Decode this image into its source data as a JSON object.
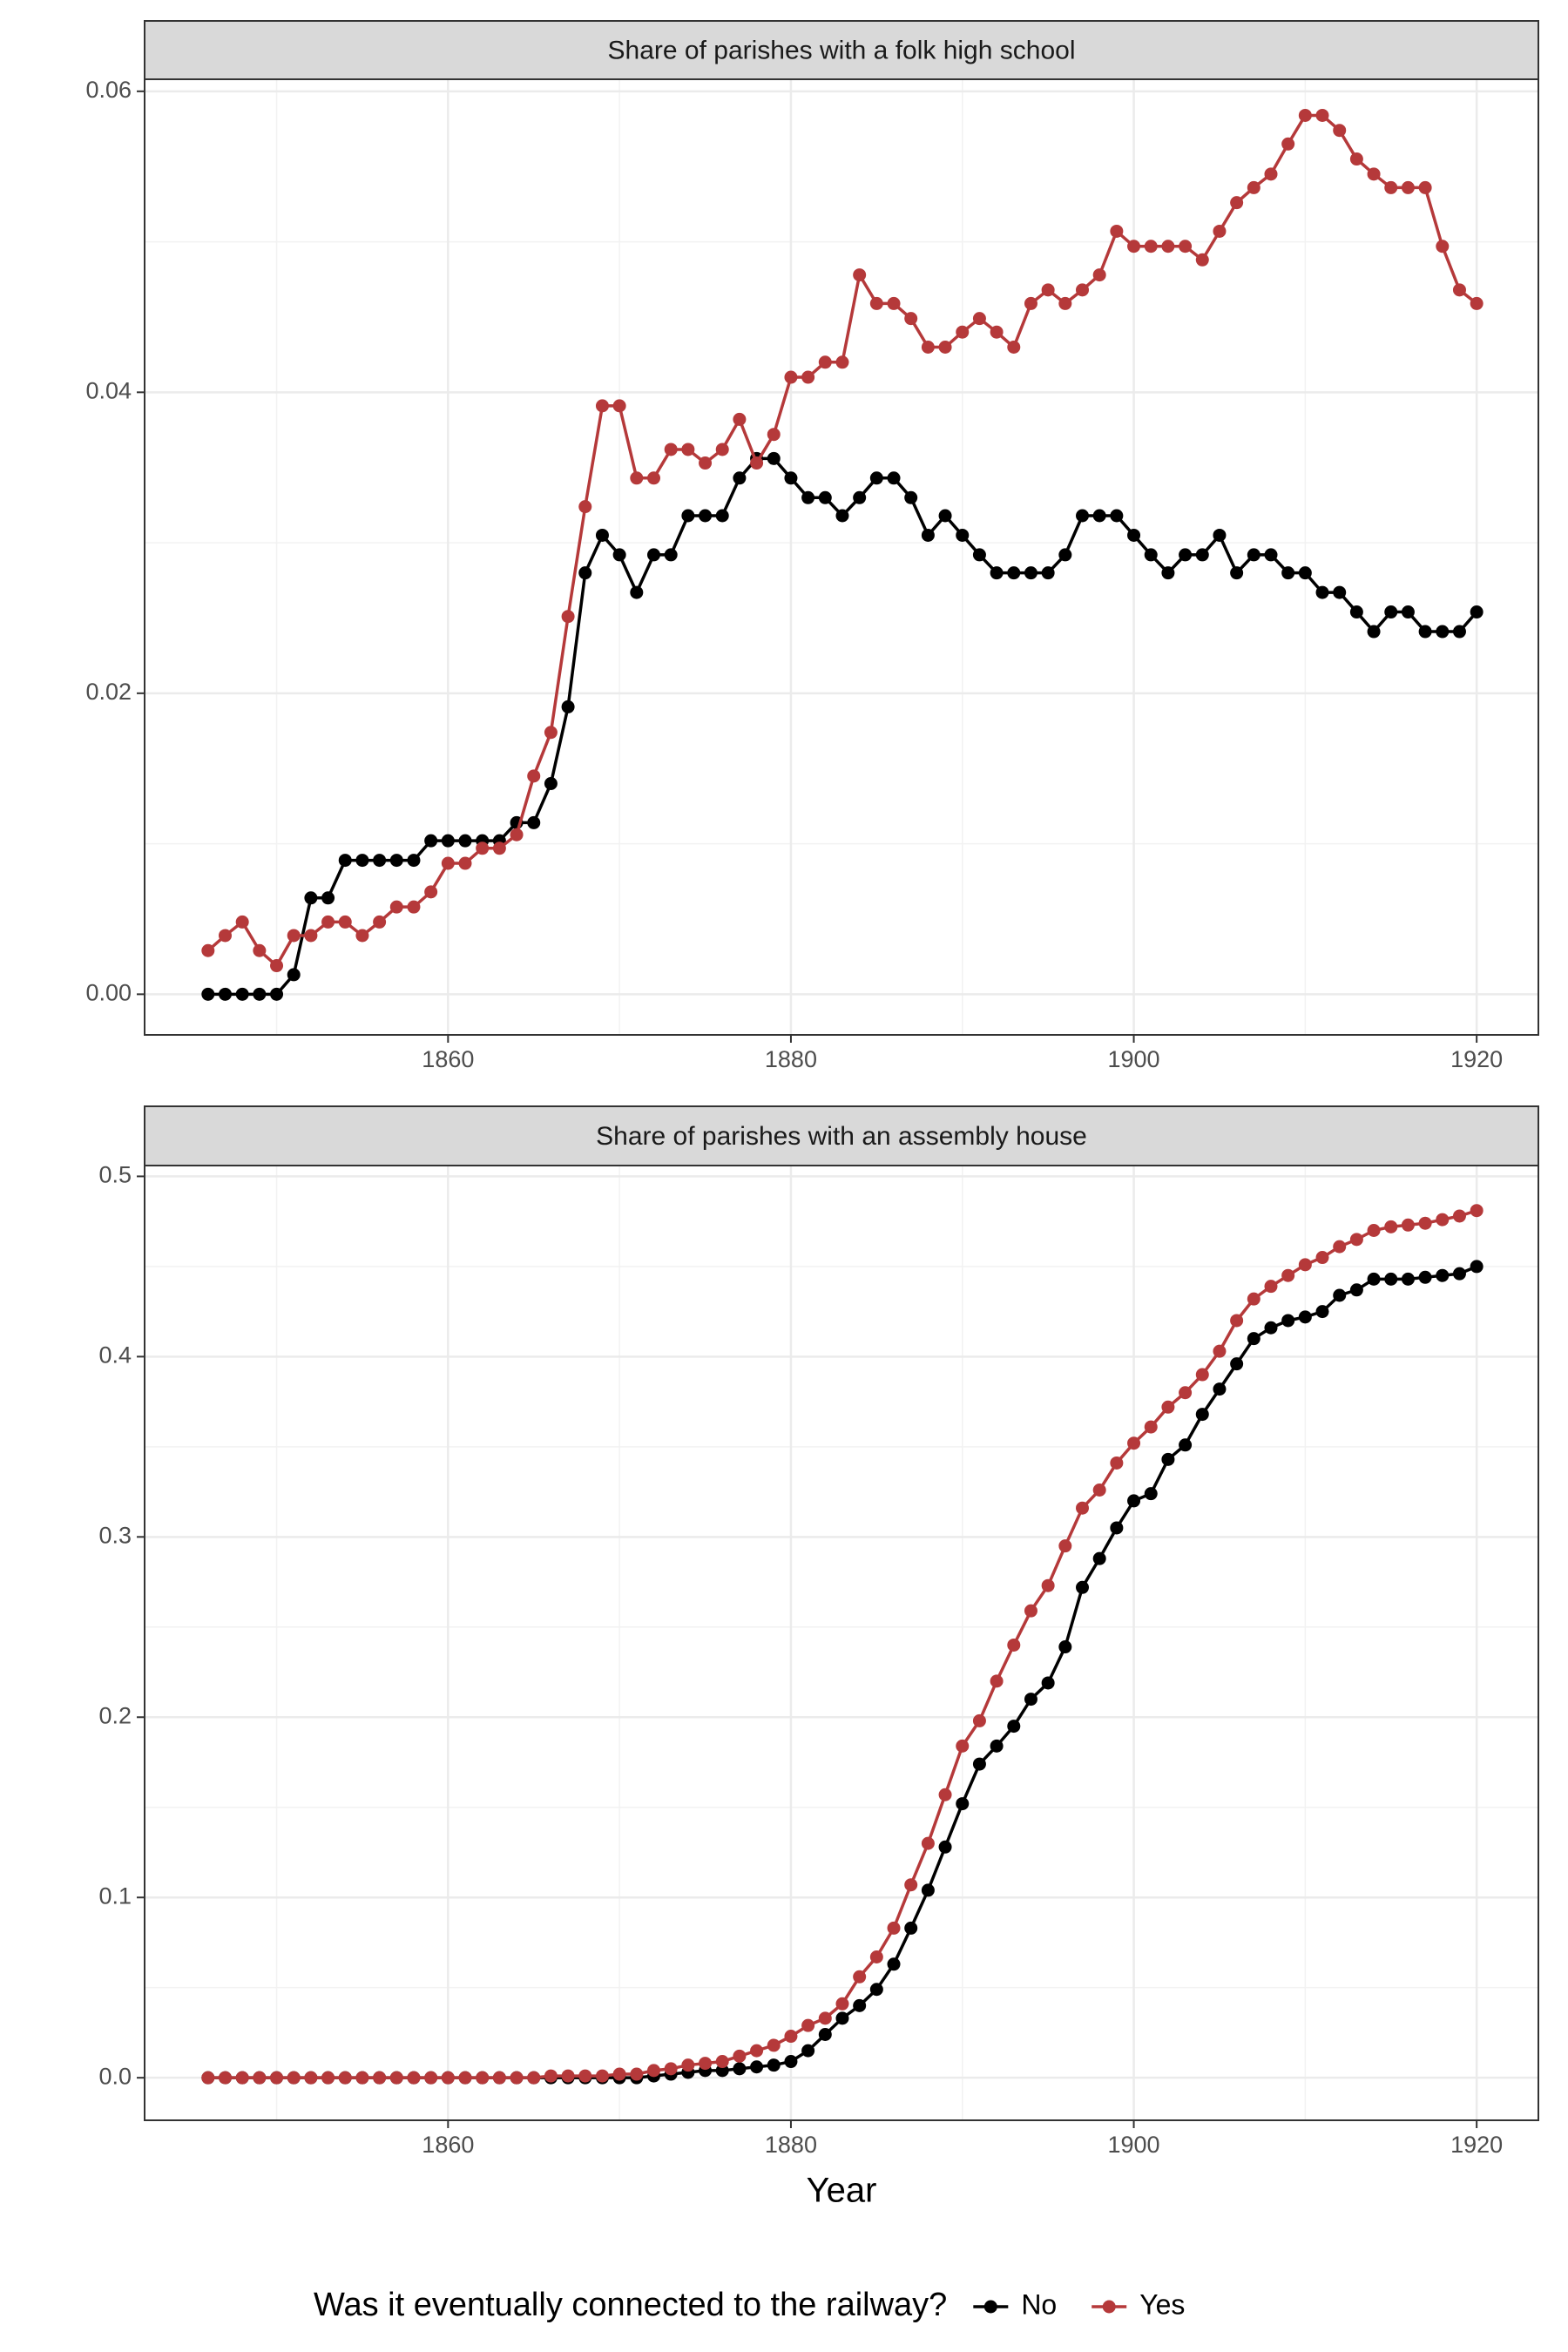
{
  "chart_data": [
    {
      "type": "line",
      "title": "Share of parishes with a folk high school",
      "x": [
        1846,
        1847,
        1848,
        1849,
        1850,
        1851,
        1852,
        1853,
        1854,
        1855,
        1856,
        1857,
        1858,
        1859,
        1860,
        1861,
        1862,
        1863,
        1864,
        1865,
        1866,
        1867,
        1868,
        1869,
        1870,
        1871,
        1872,
        1873,
        1874,
        1875,
        1876,
        1877,
        1878,
        1879,
        1880,
        1881,
        1882,
        1883,
        1884,
        1885,
        1886,
        1887,
        1888,
        1889,
        1890,
        1891,
        1892,
        1893,
        1894,
        1895,
        1896,
        1897,
        1898,
        1899,
        1900,
        1901,
        1902,
        1903,
        1904,
        1905,
        1906,
        1907,
        1908,
        1909,
        1910,
        1911,
        1912,
        1913,
        1914,
        1915,
        1916,
        1917,
        1918,
        1919,
        1920
      ],
      "series": [
        {
          "name": "No",
          "color": "#000000",
          "values": [
            0,
            0,
            0,
            0,
            0,
            0.0013,
            0.0064,
            0.0064,
            0.0089,
            0.0089,
            0.0089,
            0.0089,
            0.0089,
            0.0102,
            0.0102,
            0.0102,
            0.0102,
            0.0102,
            0.0114,
            0.0114,
            0.014,
            0.0191,
            0.028,
            0.0305,
            0.0292,
            0.0267,
            0.0292,
            0.0292,
            0.0318,
            0.0318,
            0.0318,
            0.0343,
            0.0356,
            0.0356,
            0.0343,
            0.033,
            0.033,
            0.0318,
            0.033,
            0.0343,
            0.0343,
            0.033,
            0.0305,
            0.0318,
            0.0305,
            0.0292,
            0.028,
            0.028,
            0.028,
            0.028,
            0.0292,
            0.0318,
            0.0318,
            0.0318,
            0.0305,
            0.0292,
            0.028,
            0.0292,
            0.0292,
            0.0305,
            0.028,
            0.0292,
            0.0292,
            0.028,
            0.028,
            0.0267,
            0.0267,
            0.0254,
            0.0241,
            0.0254,
            0.0254,
            0.0241,
            0.0241,
            0.0241,
            0.0254
          ]
        },
        {
          "name": "Yes",
          "color": "#b5393a",
          "values": [
            0.0029,
            0.0039,
            0.0048,
            0.0029,
            0.0019,
            0.0039,
            0.0039,
            0.0048,
            0.0048,
            0.0039,
            0.0048,
            0.0058,
            0.0058,
            0.0068,
            0.0087,
            0.0087,
            0.0097,
            0.0097,
            0.0106,
            0.0145,
            0.0174,
            0.0251,
            0.0324,
            0.0391,
            0.0391,
            0.0343,
            0.0343,
            0.0362,
            0.0362,
            0.0353,
            0.0362,
            0.0382,
            0.0353,
            0.0372,
            0.041,
            0.041,
            0.042,
            0.042,
            0.0478,
            0.0459,
            0.0459,
            0.0449,
            0.043,
            0.043,
            0.044,
            0.0449,
            0.044,
            0.043,
            0.0459,
            0.0468,
            0.0459,
            0.0468,
            0.0478,
            0.0507,
            0.0497,
            0.0497,
            0.0497,
            0.0497,
            0.0488,
            0.0507,
            0.0526,
            0.0536,
            0.0545,
            0.0565,
            0.0584,
            0.0584,
            0.0574,
            0.0555,
            0.0545,
            0.0536,
            0.0536,
            0.0536,
            0.0497,
            0.0468,
            0.0459
          ]
        }
      ],
      "xlim": [
        1842.3,
        1923.6
      ],
      "xticks": [
        1860,
        1880,
        1900,
        1920
      ],
      "ylim": [
        -0.0027,
        0.0608
      ],
      "yticks": [
        {
          "value": 0,
          "label": "0.00"
        },
        0.02,
        0.04,
        0.06
      ],
      "grid": true
    },
    {
      "type": "line",
      "title": "Share of parishes with an assembly house",
      "xlabel": "Year",
      "legend_title": "Was it eventually connected to the railway?",
      "legend": "bottom",
      "x": [
        1846,
        1847,
        1848,
        1849,
        1850,
        1851,
        1852,
        1853,
        1854,
        1855,
        1856,
        1857,
        1858,
        1859,
        1860,
        1861,
        1862,
        1863,
        1864,
        1865,
        1866,
        1867,
        1868,
        1869,
        1870,
        1871,
        1872,
        1873,
        1874,
        1875,
        1876,
        1877,
        1878,
        1879,
        1880,
        1881,
        1882,
        1883,
        1884,
        1885,
        1886,
        1887,
        1888,
        1889,
        1890,
        1891,
        1892,
        1893,
        1894,
        1895,
        1896,
        1897,
        1898,
        1899,
        1900,
        1901,
        1902,
        1903,
        1904,
        1905,
        1906,
        1907,
        1908,
        1909,
        1910,
        1911,
        1912,
        1913,
        1914,
        1915,
        1916,
        1917,
        1918,
        1919,
        1920
      ],
      "series": [
        {
          "name": "No",
          "color": "#000000",
          "values": [
            0,
            0,
            0,
            0,
            0,
            0,
            0,
            0,
            0,
            0,
            0,
            0,
            0,
            0,
            0,
            0,
            0,
            0,
            0,
            0,
            0,
            0,
            0,
            0,
            0,
            0,
            0.001,
            0.002,
            0.003,
            0.004,
            0.004,
            0.005,
            0.006,
            0.007,
            0.009,
            0.015,
            0.024,
            0.033,
            0.04,
            0.049,
            0.063,
            0.083,
            0.104,
            0.128,
            0.152,
            0.174,
            0.184,
            0.195,
            0.21,
            0.219,
            0.239,
            0.272,
            0.288,
            0.305,
            0.32,
            0.324,
            0.343,
            0.351,
            0.368,
            0.382,
            0.396,
            0.41,
            0.416,
            0.42,
            0.422,
            0.425,
            0.434,
            0.437,
            0.443,
            0.443,
            0.443,
            0.444,
            0.445,
            0.446,
            0.45
          ]
        },
        {
          "name": "Yes",
          "color": "#b5393a",
          "values": [
            0,
            0,
            0,
            0,
            0,
            0,
            0,
            0,
            0,
            0,
            0,
            0,
            0,
            0,
            0,
            0,
            0,
            0,
            0,
            0,
            0.001,
            0.001,
            0.001,
            0.001,
            0.002,
            0.002,
            0.004,
            0.005,
            0.007,
            0.008,
            0.009,
            0.012,
            0.015,
            0.018,
            0.023,
            0.029,
            0.033,
            0.041,
            0.056,
            0.067,
            0.083,
            0.107,
            0.13,
            0.157,
            0.184,
            0.198,
            0.22,
            0.24,
            0.259,
            0.273,
            0.295,
            0.316,
            0.326,
            0.341,
            0.352,
            0.361,
            0.372,
            0.38,
            0.39,
            0.403,
            0.42,
            0.432,
            0.439,
            0.445,
            0.451,
            0.455,
            0.461,
            0.465,
            0.47,
            0.472,
            0.473,
            0.474,
            0.476,
            0.478,
            0.481
          ]
        }
      ],
      "xlim": [
        1842.3,
        1923.6
      ],
      "xticks": [
        1860,
        1880,
        1900,
        1920
      ],
      "ylim": [
        -0.0236,
        0.506
      ],
      "yticks": [
        {
          "value": 0,
          "label": "0.0"
        },
        0.1,
        0.2,
        0.3,
        0.4,
        0.5
      ],
      "grid": true
    }
  ]
}
